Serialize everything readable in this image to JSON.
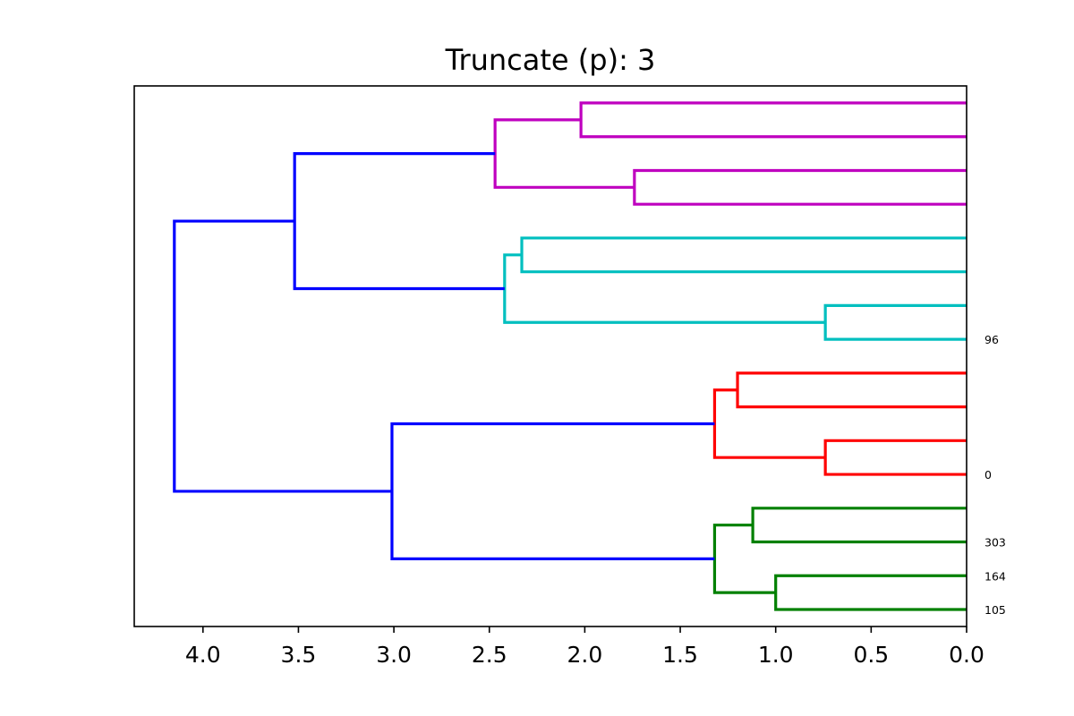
{
  "chart_data": {
    "type": "dendrogram",
    "title": "Truncate (p): 3",
    "orientation": "left",
    "xlim": [
      4.36,
      0.0
    ],
    "x_ticks": [
      "4.0",
      "3.5",
      "3.0",
      "2.5",
      "2.0",
      "1.5",
      "1.0",
      "0.5",
      "0.0"
    ],
    "x_tick_values": [
      4.0,
      3.5,
      3.0,
      2.5,
      2.0,
      1.5,
      1.0,
      0.5,
      0.0
    ],
    "leaf_count": 16,
    "leaf_labels": [
      "",
      "",
      "",
      "",
      "",
      "",
      "",
      "96",
      "",
      "",
      "",
      "0",
      "",
      "303",
      "164",
      "105"
    ],
    "links": [
      {
        "y": [
          0,
          1
        ],
        "height": 2.02,
        "color": "#bf00bf"
      },
      {
        "y": [
          2,
          3
        ],
        "height": 1.74,
        "color": "#bf00bf"
      },
      {
        "y": [
          0.5,
          2.5
        ],
        "height": 2.47,
        "color": "#bf00bf"
      },
      {
        "y": [
          4,
          5
        ],
        "height": 2.33,
        "color": "#00bfbf"
      },
      {
        "y": [
          6,
          7
        ],
        "height": 0.74,
        "color": "#00bfbf"
      },
      {
        "y": [
          4.5,
          6.5
        ],
        "height": 2.42,
        "color": "#00bfbf"
      },
      {
        "y": [
          1.5,
          5.5
        ],
        "height": 3.52,
        "color": "#0000ff"
      },
      {
        "y": [
          8,
          9
        ],
        "height": 1.2,
        "color": "#ff0000"
      },
      {
        "y": [
          10,
          11
        ],
        "height": 0.74,
        "color": "#ff0000"
      },
      {
        "y": [
          8.5,
          10.5
        ],
        "height": 1.32,
        "color": "#ff0000"
      },
      {
        "y": [
          12,
          13
        ],
        "height": 1.12,
        "color": "#008000"
      },
      {
        "y": [
          14,
          15
        ],
        "height": 1.0,
        "color": "#008000"
      },
      {
        "y": [
          12.5,
          14.5
        ],
        "height": 1.32,
        "color": "#008000"
      },
      {
        "y": [
          9.5,
          13.5
        ],
        "height": 3.01,
        "color": "#0000ff"
      },
      {
        "y": [
          3.5,
          11.5
        ],
        "height": 4.15,
        "color": "#0000ff"
      }
    ]
  }
}
